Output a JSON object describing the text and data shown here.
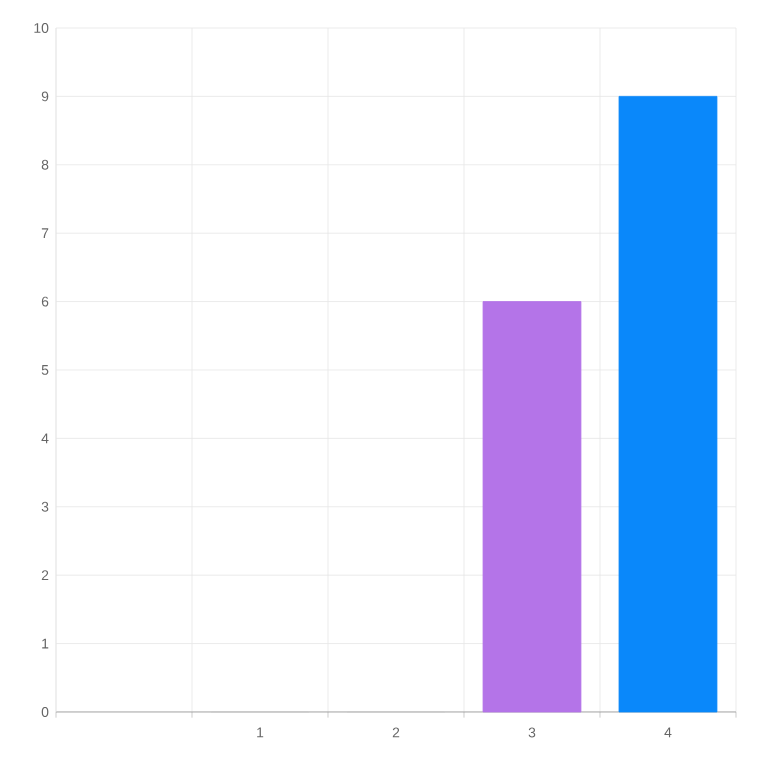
{
  "chart_data": {
    "type": "bar",
    "categories": [
      null,
      "1",
      "2",
      "3",
      "4"
    ],
    "values": [
      null,
      0,
      0,
      6,
      9
    ],
    "colors": [
      "#cccccc",
      "#cccccc",
      "#cccccc",
      "#b474e8",
      "#0a88fa"
    ],
    "ylim": [
      0,
      10
    ],
    "yticks": [
      0,
      1,
      2,
      3,
      4,
      5,
      6,
      7,
      8,
      9,
      10
    ],
    "grid": true
  }
}
